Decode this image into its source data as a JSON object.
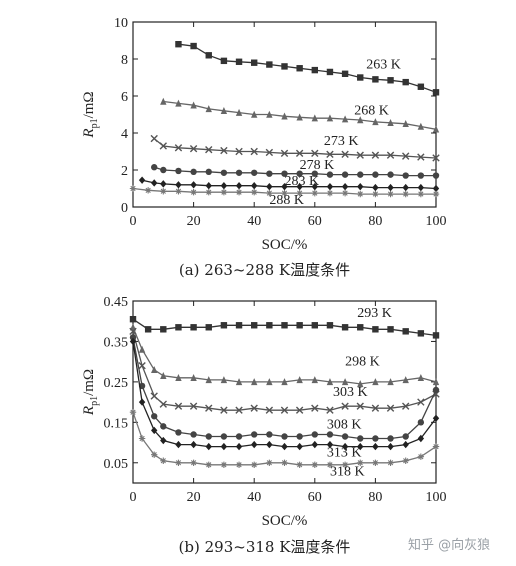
{
  "chart_data": [
    {
      "type": "line",
      "xlabel": "SOC/%",
      "ylabel_main": "R",
      "ylabel_sub": "p1",
      "ylabel_unit": "/mΩ",
      "xlim": [
        0,
        100
      ],
      "ylim": [
        0,
        10
      ],
      "xticks": [
        "0",
        "20",
        "40",
        "60",
        "80",
        "100"
      ],
      "yticks": [
        "0",
        "2",
        "4",
        "6",
        "8",
        "10"
      ],
      "caption": "(a) 263~288 K温度条件",
      "grid": false,
      "series": [
        {
          "name": "263 K",
          "marker": "square",
          "x": [
            15,
            20,
            25,
            30,
            35,
            40,
            45,
            50,
            55,
            60,
            65,
            70,
            75,
            80,
            85,
            90,
            95,
            100
          ],
          "y": [
            8.8,
            8.7,
            8.2,
            7.9,
            7.85,
            7.8,
            7.7,
            7.6,
            7.5,
            7.4,
            7.3,
            7.2,
            7.0,
            6.9,
            6.85,
            6.75,
            6.5,
            6.2
          ]
        },
        {
          "name": "268 K",
          "marker": "triangle",
          "x": [
            10,
            15,
            20,
            25,
            30,
            35,
            40,
            45,
            50,
            55,
            60,
            65,
            70,
            75,
            80,
            85,
            90,
            95,
            100
          ],
          "y": [
            5.7,
            5.6,
            5.5,
            5.3,
            5.2,
            5.1,
            5.0,
            5.0,
            4.9,
            4.85,
            4.8,
            4.8,
            4.75,
            4.7,
            4.6,
            4.55,
            4.5,
            4.35,
            4.2
          ]
        },
        {
          "name": "273 K",
          "marker": "x",
          "x": [
            7,
            10,
            15,
            20,
            25,
            30,
            35,
            40,
            45,
            50,
            55,
            60,
            65,
            70,
            75,
            80,
            85,
            90,
            95,
            100
          ],
          "y": [
            3.7,
            3.3,
            3.2,
            3.15,
            3.1,
            3.05,
            3.0,
            3.0,
            2.95,
            2.9,
            2.9,
            2.9,
            2.85,
            2.85,
            2.8,
            2.8,
            2.8,
            2.75,
            2.7,
            2.65
          ]
        },
        {
          "name": "278 K",
          "marker": "circle",
          "x": [
            7,
            10,
            15,
            20,
            25,
            30,
            35,
            40,
            45,
            50,
            55,
            60,
            65,
            70,
            75,
            80,
            85,
            90,
            95,
            100
          ],
          "y": [
            2.15,
            2.0,
            1.95,
            1.9,
            1.9,
            1.85,
            1.85,
            1.85,
            1.8,
            1.8,
            1.8,
            1.8,
            1.75,
            1.75,
            1.75,
            1.75,
            1.75,
            1.7,
            1.7,
            1.7
          ]
        },
        {
          "name": "283 K",
          "marker": "diamond",
          "x": [
            3,
            7,
            10,
            15,
            20,
            25,
            30,
            35,
            40,
            45,
            50,
            55,
            60,
            65,
            70,
            75,
            80,
            85,
            90,
            95,
            100
          ],
          "y": [
            1.45,
            1.3,
            1.25,
            1.2,
            1.2,
            1.15,
            1.15,
            1.15,
            1.15,
            1.1,
            1.1,
            1.1,
            1.1,
            1.1,
            1.1,
            1.1,
            1.05,
            1.05,
            1.05,
            1.05,
            1.0
          ]
        },
        {
          "name": "288 K",
          "marker": "star",
          "x": [
            0,
            5,
            10,
            15,
            20,
            25,
            30,
            35,
            40,
            45,
            50,
            55,
            60,
            65,
            70,
            75,
            80,
            85,
            90,
            95,
            100
          ],
          "y": [
            1.0,
            0.9,
            0.85,
            0.85,
            0.8,
            0.8,
            0.8,
            0.8,
            0.8,
            0.75,
            0.75,
            0.75,
            0.75,
            0.75,
            0.75,
            0.7,
            0.7,
            0.7,
            0.7,
            0.7,
            0.7
          ]
        }
      ],
      "annotations": [
        {
          "text": "263 K",
          "x": 77,
          "y": 7.5
        },
        {
          "text": "268 K",
          "x": 73,
          "y": 5.0
        },
        {
          "text": "273 K",
          "x": 63,
          "y": 3.35
        },
        {
          "text": "278 K",
          "x": 55,
          "y": 2.05
        },
        {
          "text": "283 K",
          "x": 50,
          "y": 1.2
        },
        {
          "text": "288 K",
          "x": 45,
          "y": 0.15
        }
      ]
    },
    {
      "type": "line",
      "xlabel": "SOC/%",
      "ylabel_main": "R",
      "ylabel_sub": "p1",
      "ylabel_unit": "/mΩ",
      "xlim": [
        0,
        100
      ],
      "ylim": [
        0,
        0.45
      ],
      "xticks": [
        "0",
        "20",
        "40",
        "60",
        "80",
        "100"
      ],
      "yticks": [
        "0.05",
        "0.15",
        "0.25",
        "0.35",
        "0.45"
      ],
      "ytick_values": [
        0.05,
        0.15,
        0.25,
        0.35,
        0.45
      ],
      "caption": "(b) 293~318 K温度条件",
      "grid": false,
      "series": [
        {
          "name": "293 K",
          "marker": "square",
          "x": [
            0,
            5,
            10,
            15,
            20,
            25,
            30,
            35,
            40,
            45,
            50,
            55,
            60,
            65,
            70,
            75,
            80,
            85,
            90,
            95,
            100
          ],
          "y": [
            0.405,
            0.38,
            0.38,
            0.385,
            0.385,
            0.385,
            0.39,
            0.39,
            0.39,
            0.39,
            0.39,
            0.39,
            0.39,
            0.39,
            0.385,
            0.385,
            0.38,
            0.38,
            0.375,
            0.37,
            0.365
          ]
        },
        {
          "name": "298 K",
          "marker": "triangle",
          "x": [
            0,
            3,
            7,
            10,
            15,
            20,
            25,
            30,
            35,
            40,
            45,
            50,
            55,
            60,
            65,
            70,
            75,
            80,
            85,
            90,
            95,
            100
          ],
          "y": [
            0.385,
            0.33,
            0.28,
            0.265,
            0.26,
            0.26,
            0.255,
            0.255,
            0.25,
            0.25,
            0.25,
            0.25,
            0.255,
            0.255,
            0.25,
            0.25,
            0.245,
            0.25,
            0.25,
            0.255,
            0.26,
            0.25
          ]
        },
        {
          "name": "303 K",
          "marker": "x",
          "x": [
            0,
            3,
            7,
            10,
            15,
            20,
            25,
            30,
            35,
            40,
            45,
            50,
            55,
            60,
            65,
            70,
            75,
            80,
            85,
            90,
            95,
            100
          ],
          "y": [
            0.375,
            0.29,
            0.215,
            0.195,
            0.19,
            0.19,
            0.185,
            0.18,
            0.18,
            0.185,
            0.18,
            0.18,
            0.18,
            0.185,
            0.18,
            0.19,
            0.19,
            0.185,
            0.185,
            0.19,
            0.2,
            0.22
          ]
        },
        {
          "name": "308 K",
          "marker": "circle",
          "x": [
            0,
            3,
            7,
            10,
            15,
            20,
            25,
            30,
            35,
            40,
            45,
            50,
            55,
            60,
            65,
            70,
            75,
            80,
            85,
            90,
            95,
            100
          ],
          "y": [
            0.36,
            0.24,
            0.165,
            0.14,
            0.125,
            0.12,
            0.115,
            0.115,
            0.115,
            0.12,
            0.12,
            0.115,
            0.115,
            0.12,
            0.12,
            0.115,
            0.11,
            0.11,
            0.11,
            0.115,
            0.15,
            0.23
          ]
        },
        {
          "name": "313 K",
          "marker": "diamond",
          "x": [
            0,
            3,
            7,
            10,
            15,
            20,
            25,
            30,
            35,
            40,
            45,
            50,
            55,
            60,
            65,
            70,
            75,
            80,
            85,
            90,
            95,
            100
          ],
          "y": [
            0.35,
            0.2,
            0.13,
            0.105,
            0.095,
            0.095,
            0.09,
            0.09,
            0.09,
            0.095,
            0.095,
            0.09,
            0.09,
            0.095,
            0.095,
            0.09,
            0.09,
            0.09,
            0.09,
            0.095,
            0.11,
            0.16
          ]
        },
        {
          "name": "318 K",
          "marker": "star",
          "x": [
            0,
            3,
            7,
            10,
            15,
            20,
            25,
            30,
            35,
            40,
            45,
            50,
            55,
            60,
            65,
            70,
            75,
            80,
            85,
            90,
            95,
            100
          ],
          "y": [
            0.175,
            0.11,
            0.07,
            0.055,
            0.05,
            0.05,
            0.045,
            0.045,
            0.045,
            0.045,
            0.05,
            0.05,
            0.045,
            0.045,
            0.045,
            0.045,
            0.05,
            0.05,
            0.05,
            0.055,
            0.065,
            0.09
          ]
        }
      ],
      "annotations": [
        {
          "text": "293 K",
          "x": 74,
          "y": 0.41
        },
        {
          "text": "298 K",
          "x": 70,
          "y": 0.29
        },
        {
          "text": "303 K",
          "x": 66,
          "y": 0.215
        },
        {
          "text": "308 K",
          "x": 64,
          "y": 0.135
        },
        {
          "text": "313 K",
          "x": 64,
          "y": 0.065
        },
        {
          "text": "318 K",
          "x": 65,
          "y": 0.018
        }
      ]
    }
  ],
  "watermark": "知乎 @向灰狼"
}
